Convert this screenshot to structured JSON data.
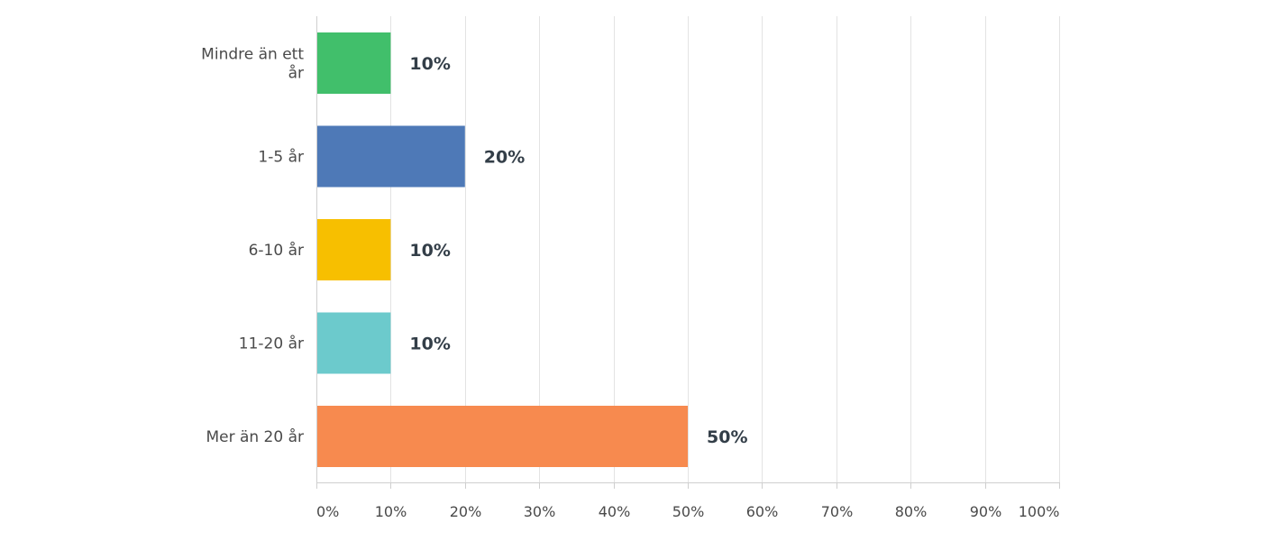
{
  "chart_data": {
    "type": "bar",
    "orientation": "horizontal",
    "categories": [
      [
        "Mindre än ett",
        "år"
      ],
      [
        "1-5 år"
      ],
      [
        "6-10 år"
      ],
      [
        "11-20 år"
      ],
      [
        "Mer än 20 år"
      ]
    ],
    "values": [
      10,
      20,
      10,
      10,
      50
    ],
    "value_labels": [
      "10%",
      "20%",
      "10%",
      "10%",
      "50%"
    ],
    "colors": [
      "#41bf6b",
      "#4e79b7",
      "#f7bf00",
      "#6ccacc",
      "#f78a4f"
    ],
    "x_ticks": [
      "0%",
      "10%",
      "20%",
      "30%",
      "40%",
      "50%",
      "60%",
      "70%",
      "80%",
      "90%",
      "100%"
    ],
    "xlim": [
      0,
      100
    ],
    "grid": true,
    "title": "",
    "xlabel": "",
    "ylabel": ""
  }
}
